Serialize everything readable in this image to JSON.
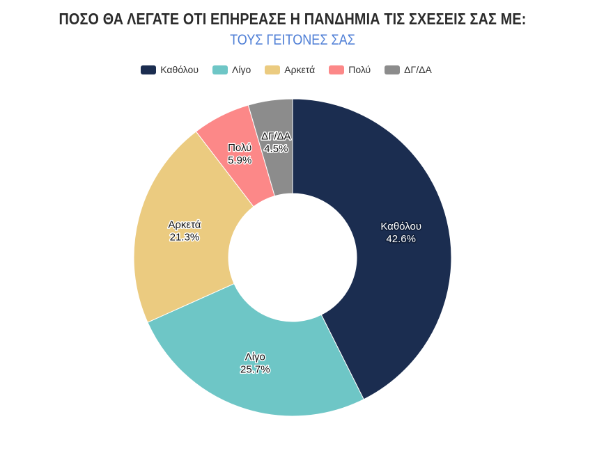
{
  "title": "ΠΟΣΟ ΘΑ ΛΕΓΑΤΕ ΟΤΙ ΕΠΗΡΕΑΣΕ Η ΠΑΝΔΗΜΙΑ ΤΙΣ ΣΧΕΣΕΙΣ ΣΑΣ ΜΕ:",
  "subtitle": "ΤΟΥΣ ΓΕΙΤΟΝΕΣ ΣΑΣ",
  "chart_data": {
    "type": "pie",
    "donut": true,
    "legend_position": "top",
    "categories": [
      "Καθόλου",
      "Λίγο",
      "Αρκετά",
      "Πολύ",
      "ΔΓ/ΔΑ"
    ],
    "values": [
      42.6,
      25.7,
      21.3,
      5.9,
      4.5
    ],
    "labels": [
      "42.6%",
      "25.7%",
      "21.3%",
      "5.9%",
      "4.5%"
    ],
    "colors": [
      "#1b2d50",
      "#6ec6c6",
      "#ebcb80",
      "#fc8888",
      "#8c8c8c"
    ]
  }
}
